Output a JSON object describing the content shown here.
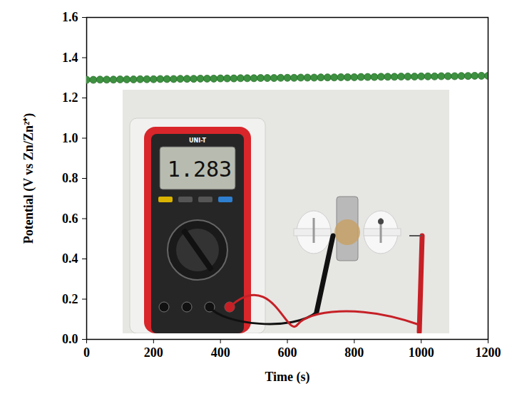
{
  "chart_data": {
    "type": "line",
    "x_label": "Time (s)",
    "y_label": "Potential (V vs Zn/Zn²⁺)",
    "xlim": [
      0,
      1200
    ],
    "xticks": [
      0,
      200,
      400,
      600,
      800,
      1000,
      1200
    ],
    "ylim": [
      0,
      1.6
    ],
    "yticks": [
      {
        "value": 0,
        "label": "0.0"
      },
      0.2,
      0.4,
      0.6,
      0.8,
      {
        "value": 1,
        "label": "1.0"
      },
      1.2,
      1.4,
      1.6
    ],
    "grid": false,
    "annotations": [
      "UNI-T",
      "1.283"
    ],
    "x": [
      0,
      20,
      40,
      60,
      80,
      100,
      120,
      140,
      160,
      180,
      200,
      220,
      240,
      260,
      280,
      300,
      320,
      340,
      360,
      380,
      400,
      420,
      440,
      460,
      480,
      500,
      520,
      540,
      560,
      580,
      600,
      620,
      640,
      660,
      680,
      700,
      720,
      740,
      760,
      780,
      800,
      820,
      840,
      860,
      880,
      900,
      920,
      940,
      960,
      980,
      1000,
      1020,
      1040,
      1060,
      1080,
      1100,
      1120,
      1140,
      1160,
      1180,
      1200
    ],
    "series": [
      {
        "color": "#3d9140",
        "marker": "circle",
        "line_style": "solid",
        "values": [
          1.29,
          1.29,
          1.291,
          1.291,
          1.291,
          1.292,
          1.292,
          1.292,
          1.293,
          1.293,
          1.293,
          1.294,
          1.294,
          1.294,
          1.295,
          1.295,
          1.295,
          1.296,
          1.296,
          1.296,
          1.297,
          1.297,
          1.297,
          1.298,
          1.298,
          1.298,
          1.299,
          1.299,
          1.299,
          1.3,
          1.3,
          1.3,
          1.301,
          1.301,
          1.301,
          1.302,
          1.302,
          1.302,
          1.303,
          1.303,
          1.303,
          1.304,
          1.304,
          1.304,
          1.305,
          1.305,
          1.305,
          1.306,
          1.306,
          1.306,
          1.307,
          1.307,
          1.307,
          1.308,
          1.308,
          1.308,
          1.309,
          1.309,
          1.31,
          1.31,
          1.31
        ]
      }
    ]
  }
}
